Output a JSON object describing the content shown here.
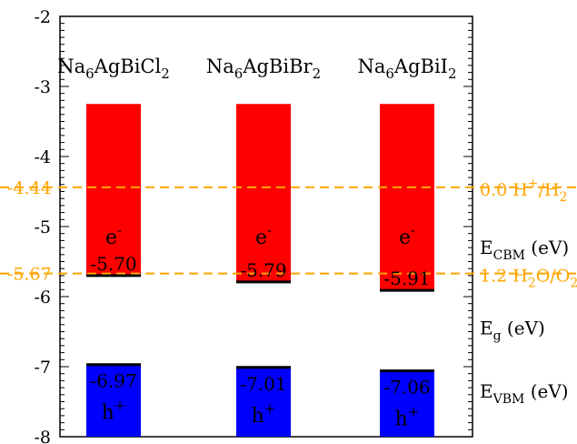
{
  "chart_data": {
    "type": "bar",
    "title": "",
    "xlabel": "",
    "ylabel": "",
    "ylim": [
      -8,
      -2
    ],
    "yticks": [
      -8,
      -7,
      -6,
      -5,
      -4,
      -3,
      -2
    ],
    "grid": false,
    "bar_top": -3.25,
    "bar_bottom": -8,
    "colors": {
      "cbm": "#ff0000",
      "vbm": "#0000ff",
      "line": "#000000",
      "reference": "#ffa500"
    },
    "compounds": [
      {
        "prefix": "Na",
        "sub1": "6",
        "middle": "AgBiCl",
        "sub2": "2",
        "cbm": -5.7,
        "vbm": -6.97,
        "cbm_label": "-5.70",
        "vbm_label": "-6.97",
        "electron": "e",
        "electron_sup": "-",
        "hole": "h",
        "hole_sup": "+"
      },
      {
        "prefix": "Na",
        "sub1": "6",
        "middle": "AgBiBr",
        "sub2": "2",
        "cbm": -5.79,
        "vbm": -7.01,
        "cbm_label": "-5.79",
        "vbm_label": "-7.01",
        "electron": "e",
        "electron_sup": "-",
        "hole": "h",
        "hole_sup": "+"
      },
      {
        "prefix": "Na",
        "sub1": "6",
        "middle": "AgBiI",
        "sub2": "2",
        "cbm": -5.91,
        "vbm": -7.06,
        "cbm_label": "-5.91",
        "vbm_label": "-7.06",
        "electron": "e",
        "electron_sup": "-",
        "hole": "h",
        "hole_sup": "+"
      }
    ],
    "reference_lines": [
      {
        "value": -4.44,
        "left_label": "-4.44",
        "right_label": "0.0 H",
        "right_sup": "+",
        "right_mid": "/H",
        "right_sub": "2",
        "right_tail": ""
      },
      {
        "value": -5.67,
        "left_label": "-5.67",
        "right_label": "1.2 H",
        "right_sup": "",
        "right_mid": "",
        "right_sub": "2",
        "right_tail": "O/O",
        "right_sub2": "2"
      }
    ],
    "right_labels": [
      {
        "value": -5.3,
        "main": "E",
        "sub": "CBM",
        "unit": " (eV)"
      },
      {
        "value": -6.45,
        "main": "E",
        "sub": "g",
        "unit": " (eV)"
      },
      {
        "value": -7.35,
        "main": "E",
        "sub": "VBM",
        "unit": " (eV)"
      }
    ]
  }
}
